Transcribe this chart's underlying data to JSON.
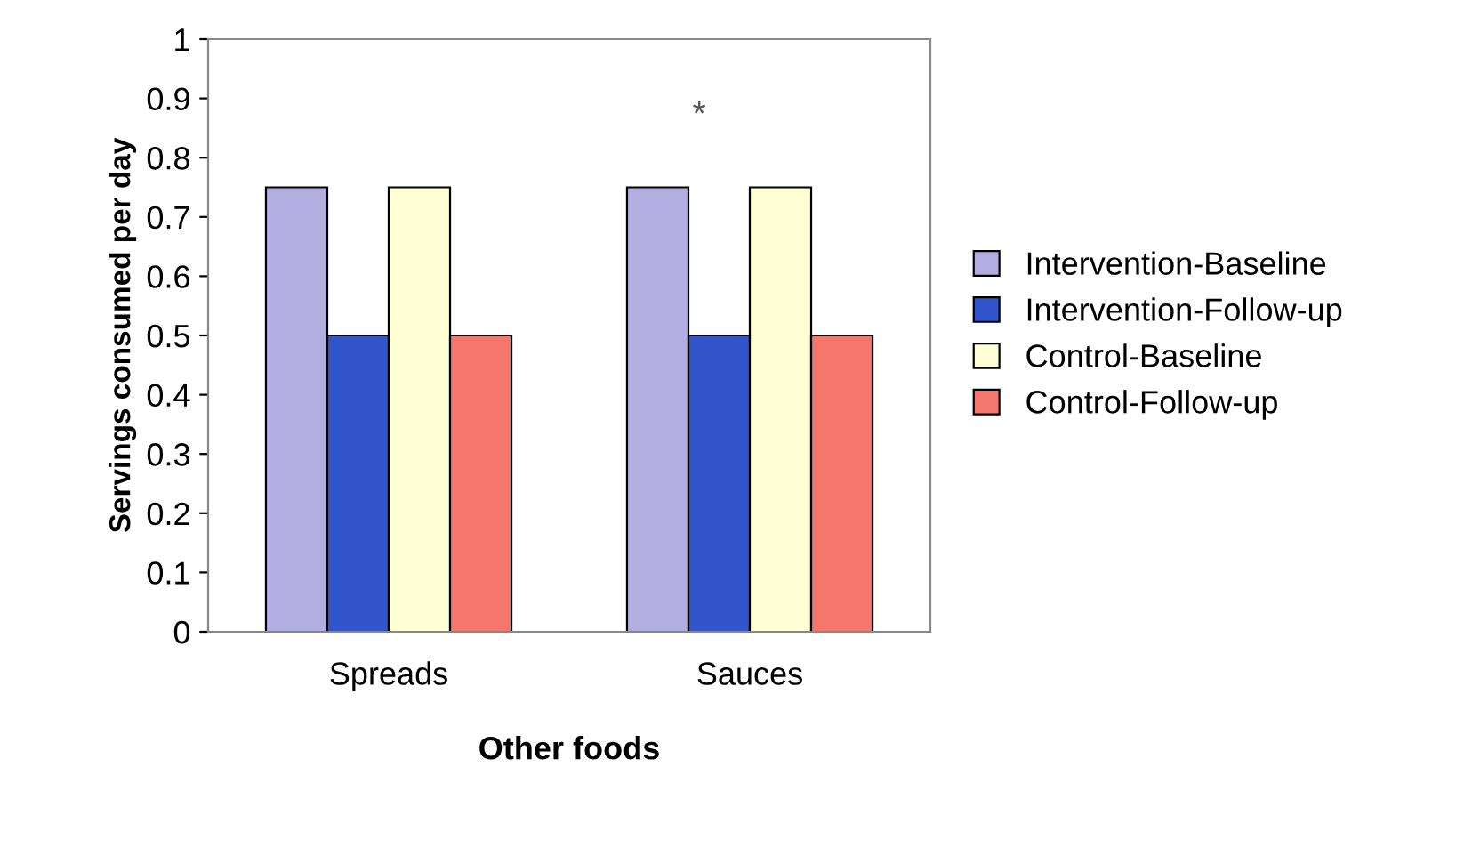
{
  "chart_data": {
    "type": "bar",
    "xlabel": "Other foods",
    "ylabel": "Servings consumed per day",
    "categories": [
      "Spreads",
      "Sauces"
    ],
    "series": [
      {
        "name": "Intervention-Baseline",
        "color": "#b3aee0",
        "values": [
          0.75,
          0.75
        ]
      },
      {
        "name": "Intervention-Follow-up",
        "color": "#3355cc",
        "values": [
          0.5,
          0.5
        ]
      },
      {
        "name": "Control-Baseline",
        "color": "#ffffd6",
        "values": [
          0.75,
          0.75
        ]
      },
      {
        "name": "Control-Follow-up",
        "color": "#f4766c",
        "values": [
          0.5,
          0.5
        ]
      }
    ],
    "ylim": [
      0,
      1
    ],
    "yticks": [
      0,
      0.1,
      0.2,
      0.3,
      0.4,
      0.5,
      0.6,
      0.7,
      0.8,
      0.9,
      1
    ],
    "annotations": [
      "*"
    ],
    "legend": "right",
    "grid": false
  }
}
